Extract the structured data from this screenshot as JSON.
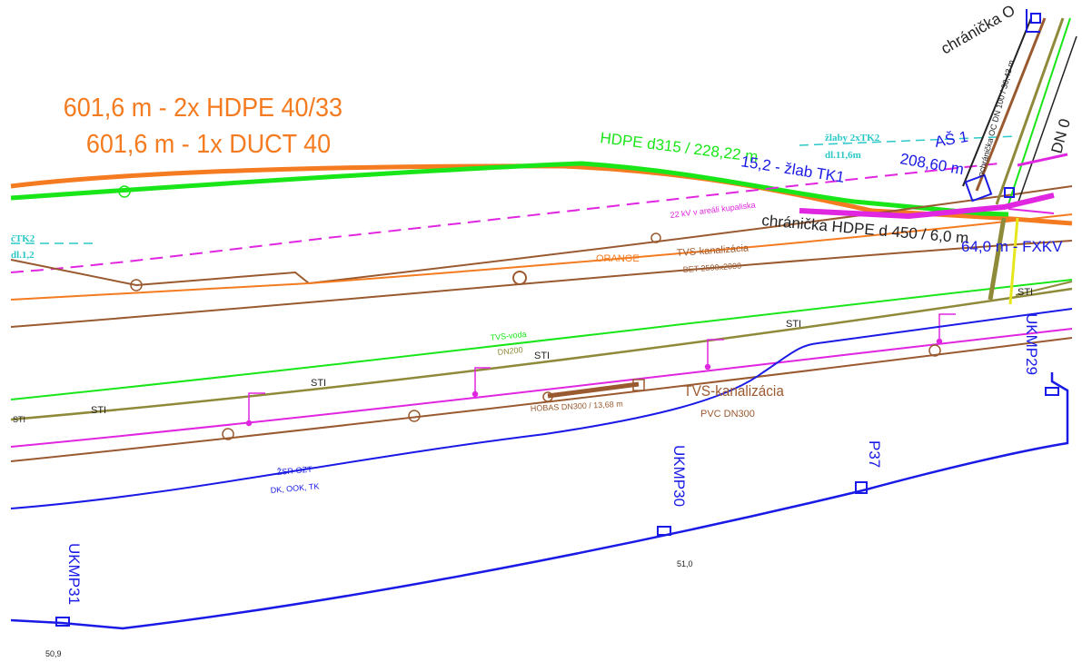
{
  "colors": {
    "orange": "#f47b20",
    "green": "#19e619",
    "magenta": "#e026e0",
    "brown": "#9a5a30",
    "olive": "#8f8a3a",
    "blue": "#1a1ae6",
    "cyan": "#2bc8c8",
    "dark": "#222222",
    "yellow": "#e6e61a"
  },
  "title": {
    "line1": "601,6 m - 2x HDPE 40/33",
    "line2": "601,6 m - 1x DUCT 40"
  },
  "labels": {
    "hdpe_d315": "HDPE d315 / 228,22 m",
    "zlab_tk1": "15,2 - žlab TK1",
    "zlaby_2xtk2": "žlaby 2xTK2",
    "zlaby_dl": "dl.11,6m",
    "as1": "AŠ 1",
    "len_208": "208,60 m",
    "chranicka_hdpe": "chránička HDPE d 450 / 6,0 m",
    "fxkv": "64,0 m - FXKV",
    "chranicka_top": "chránička O",
    "kv_22": "22 kV v areáli kupaliska",
    "orange_label": "ORANGE",
    "tvs_kanal_top": "TVS-kanalizácia",
    "bet": "BET 2500x2000",
    "tvs_voda": "TVS-voda",
    "dn200": "DN200",
    "sti": "STI",
    "hobas": "HOBAS DN300 / 13,68 m",
    "tvs_kanal_bottom": "TVS-kanalizácia",
    "pvc": "PVC DN300",
    "zsr_ozt": "ŽSR-OZT",
    "dk_ook": "DK, OOK, TK",
    "ukmp30": "UKMP30",
    "p37": "P37",
    "ukmp29": "UKMP29",
    "ukmp31": "UKMP31",
    "km51": "51,0",
    "km50": "50,9",
    "left_tk2": "čTK2",
    "left_dl": "dl.1,2",
    "dn_top_right": "DN 0",
    "vertical_small": "ochránička OC DN 100 / 30,43 m"
  }
}
